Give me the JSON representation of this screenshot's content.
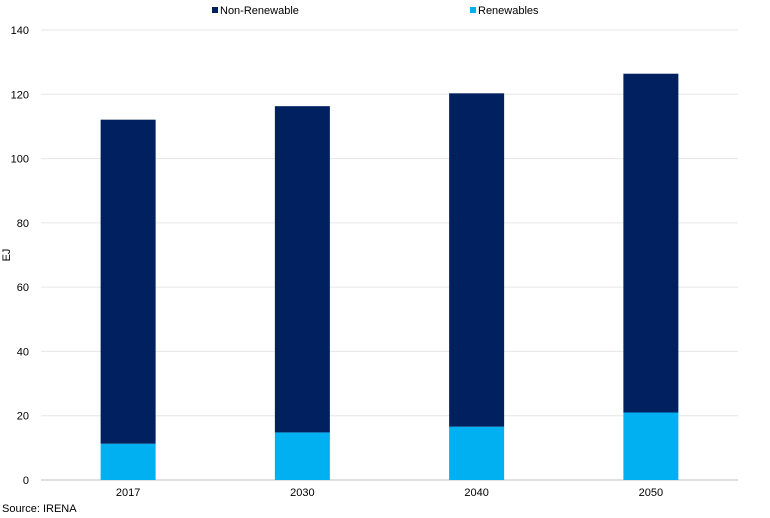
{
  "chart_data": {
    "type": "bar",
    "stacked": true,
    "categories": [
      "2017",
      "2030",
      "2040",
      "2050"
    ],
    "series": [
      {
        "name": "Renewables",
        "color": "#00B0F0",
        "values": [
          11.3,
          14.8,
          16.6,
          21.0
        ]
      },
      {
        "name": "Non-Renewable",
        "color": "#002060",
        "values": [
          100.8,
          101.5,
          103.7,
          105.4
        ]
      }
    ],
    "legend": [
      {
        "name": "Non-Renewable",
        "color": "#002060"
      },
      {
        "name": "Renewables",
        "color": "#00B0F0"
      }
    ],
    "legend_position": "top",
    "title": "",
    "xlabel": "",
    "ylabel": "EJ",
    "ylim": [
      0,
      140
    ],
    "yticks": [
      "0",
      "20",
      "40",
      "60",
      "80",
      "100",
      "120",
      "140"
    ],
    "grid": true
  },
  "source": "Source: IRENA"
}
